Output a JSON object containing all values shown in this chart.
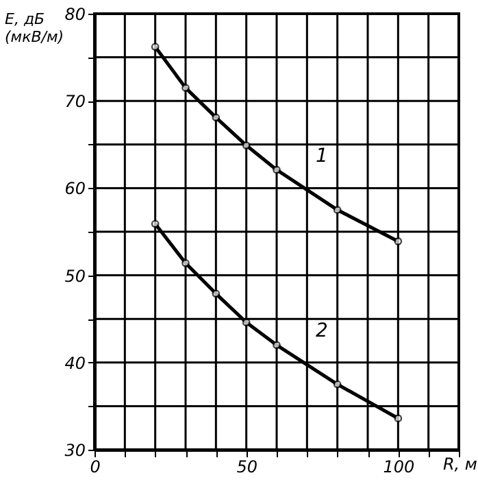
{
  "chart_data": {
    "type": "line",
    "xlabel": "R, м",
    "ylabel": "E, дБ\n(мкВ/м)",
    "x": [
      20,
      30,
      40,
      50,
      60,
      80,
      100
    ],
    "series": [
      {
        "name": "1",
        "color": "#000000",
        "values": [
          76.2,
          71.5,
          68.1,
          64.9,
          62.1,
          57.5,
          53.9
        ]
      },
      {
        "name": "2",
        "color": "#000000",
        "values": [
          55.9,
          51.4,
          47.9,
          44.6,
          42.0,
          37.5,
          33.6
        ]
      }
    ],
    "xlim": [
      0,
      120
    ],
    "xticks": [
      0,
      {
        "value": 10,
        "label": null
      },
      {
        "value": 20,
        "label": null
      },
      {
        "value": 30,
        "label": null
      },
      {
        "value": 40,
        "label": null
      },
      50,
      {
        "value": 60,
        "label": null
      },
      {
        "value": 70,
        "label": null
      },
      {
        "value": 80,
        "label": null
      },
      {
        "value": 90,
        "label": null
      },
      100,
      {
        "value": 110,
        "label": null
      },
      {
        "value": 120,
        "label": null
      }
    ],
    "ylim": [
      30,
      80
    ],
    "yticks": [
      30,
      {
        "value": 35,
        "label": null
      },
      40,
      {
        "value": 45,
        "label": null
      },
      50,
      {
        "value": 55,
        "label": null
      },
      60,
      {
        "value": 65,
        "label": null
      },
      70,
      {
        "value": 75,
        "label": null
      },
      80
    ],
    "grid": true,
    "marker": "circle",
    "line_style": "solid"
  }
}
